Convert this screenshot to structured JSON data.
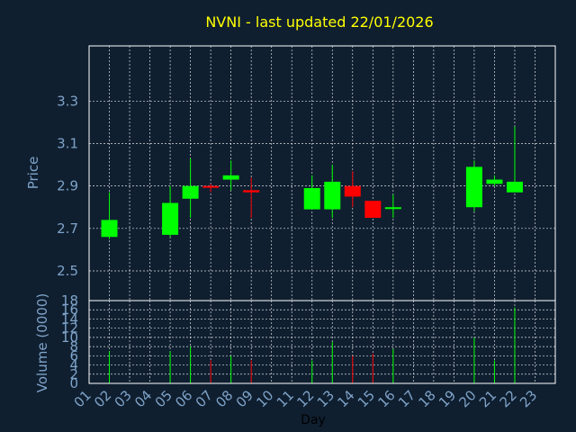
{
  "chart_data": [
    {
      "type": "candlestick",
      "title": "NVNI - last updated 22/01/2026",
      "ylabel": "Price",
      "ylim": [
        2.36,
        3.56
      ],
      "yticks": [
        "2.5",
        "2.7",
        "2.9",
        "3.1",
        "3.3"
      ],
      "grid": true,
      "colors": {
        "up": "#00ff00",
        "down": "#ff0000",
        "background": "#0f1f30",
        "text": "#7fa3c8",
        "title": "#ffff00"
      },
      "candles": [
        {
          "day": "02",
          "open": 2.66,
          "high": 2.87,
          "low": 2.65,
          "close": 2.74
        },
        {
          "day": "05",
          "open": 2.67,
          "high": 2.9,
          "low": 2.66,
          "close": 2.82
        },
        {
          "day": "06",
          "open": 2.84,
          "high": 3.03,
          "low": 2.75,
          "close": 2.9
        },
        {
          "day": "07",
          "open": 2.9,
          "high": 2.91,
          "low": 2.87,
          "close": 2.895
        },
        {
          "day": "08",
          "open": 2.93,
          "high": 3.02,
          "low": 2.88,
          "close": 2.95
        },
        {
          "day": "09",
          "open": 2.88,
          "high": 2.94,
          "low": 2.75,
          "close": 2.87
        },
        {
          "day": "12",
          "open": 2.79,
          "high": 2.95,
          "low": 2.79,
          "close": 2.89
        },
        {
          "day": "13",
          "open": 2.79,
          "high": 3.0,
          "low": 2.75,
          "close": 2.92
        },
        {
          "day": "14",
          "open": 2.9,
          "high": 2.97,
          "low": 2.8,
          "close": 2.85
        },
        {
          "day": "15",
          "open": 2.83,
          "high": 2.83,
          "low": 2.75,
          "close": 2.75
        },
        {
          "day": "16",
          "open": 2.795,
          "high": 2.86,
          "low": 2.75,
          "close": 2.8
        },
        {
          "day": "20",
          "open": 2.8,
          "high": 3.02,
          "low": 2.78,
          "close": 2.99
        },
        {
          "day": "21",
          "open": 2.91,
          "high": 2.95,
          "low": 2.9,
          "close": 2.93
        },
        {
          "day": "22",
          "open": 2.87,
          "high": 3.18,
          "low": 2.87,
          "close": 2.92
        }
      ]
    },
    {
      "type": "bar",
      "xlabel": "Day",
      "ylabel": "Volume (0000)",
      "ylim": [
        0,
        18
      ],
      "yticks": [
        "0",
        "2",
        "4",
        "6",
        "8",
        "10",
        "12",
        "14",
        "16",
        "18"
      ],
      "categories": [
        "01",
        "02",
        "03",
        "04",
        "05",
        "06",
        "07",
        "08",
        "09",
        "10",
        "11",
        "12",
        "13",
        "14",
        "15",
        "16",
        "17",
        "18",
        "19",
        "20",
        "21",
        "22",
        "23"
      ],
      "values": [
        {
          "day": "02",
          "volume": 7,
          "direction": "up"
        },
        {
          "day": "05",
          "volume": 7,
          "direction": "up"
        },
        {
          "day": "06",
          "volume": 8,
          "direction": "up"
        },
        {
          "day": "07",
          "volume": 5,
          "direction": "down"
        },
        {
          "day": "08",
          "volume": 6,
          "direction": "up"
        },
        {
          "day": "09",
          "volume": 5,
          "direction": "down"
        },
        {
          "day": "12",
          "volume": 5,
          "direction": "up"
        },
        {
          "day": "13",
          "volume": 9,
          "direction": "up"
        },
        {
          "day": "14",
          "volume": 6,
          "direction": "down"
        },
        {
          "day": "15",
          "volume": 6.5,
          "direction": "down"
        },
        {
          "day": "16",
          "volume": 7.5,
          "direction": "up"
        },
        {
          "day": "20",
          "volume": 10,
          "direction": "up"
        },
        {
          "day": "21",
          "volume": 5,
          "direction": "up"
        },
        {
          "day": "22",
          "volume": 16.5,
          "direction": "up"
        }
      ]
    }
  ]
}
